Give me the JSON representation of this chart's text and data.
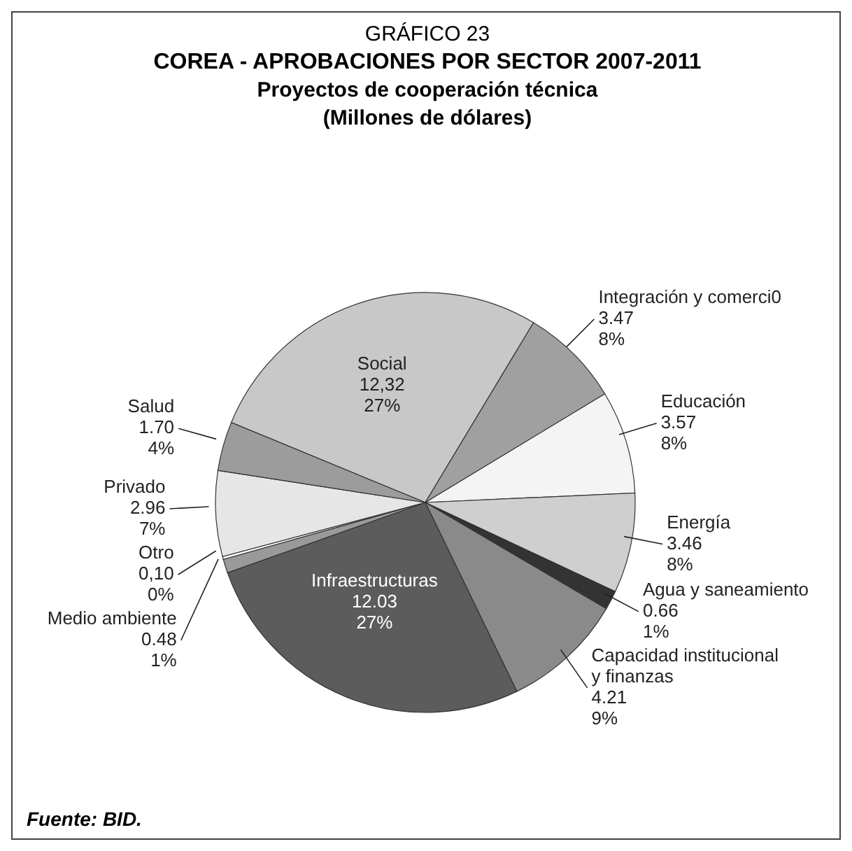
{
  "chart_data": {
    "type": "pie",
    "title": "COREA - APROBACIONES POR SECTOR 2007-2011",
    "subtitle": "Proyectos de cooperación técnica\n(Millones de dólares)",
    "annotations": [
      "GRÁFICO 23",
      "Fuente: BID."
    ],
    "categories": [
      "Social",
      "Integración y comerci0",
      "Educación",
      "Energía",
      "Agua y saneamiento",
      "Capacidad institucional y finanzas",
      "Infraestructuras",
      "Medio ambiente",
      "Otro",
      "Privado",
      "Salud"
    ],
    "values": [
      12.32,
      3.47,
      3.57,
      3.46,
      0.66,
      4.21,
      12.03,
      0.48,
      0.1,
      2.96,
      1.7
    ],
    "value_labels": [
      "12,32\n27%",
      "3.47\n8%",
      "3.57\n8%",
      "3.46\n8%",
      "0.66\n1%",
      "4.21\n9%",
      "12.03\n27%",
      "0.48\n1%",
      "0,10\n0%",
      "2.96\n7%",
      "1.70\n4%"
    ],
    "colors": [
      "#c8c8c8",
      "#a0a0a0",
      "#f4f4f4",
      "#cfcfcf",
      "#333333",
      "#8a8a8a",
      "#5c5c5c",
      "#9a9a9a",
      "#ffffff",
      "#e6e6e6",
      "#9c9c9c"
    ],
    "legend": false
  }
}
